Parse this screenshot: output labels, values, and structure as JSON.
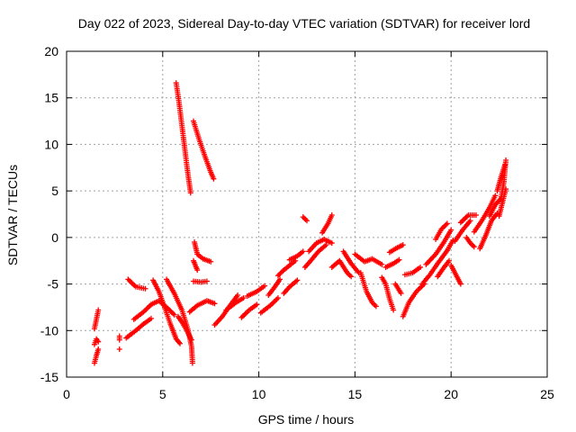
{
  "chart_data": {
    "type": "scatter",
    "title": "Day 022 of 2023, Sidereal Day-to-day VTEC variation (SDTVAR) for receiver lord",
    "xlabel": "GPS time / hours",
    "ylabel": "SDTVAR / TECUs",
    "xlim": [
      0,
      25
    ],
    "ylim": [
      -15,
      20
    ],
    "xticks": [
      0,
      5,
      10,
      15,
      20,
      25
    ],
    "yticks": [
      -15,
      -10,
      -5,
      0,
      5,
      10,
      15,
      20
    ],
    "xtick_labels": [
      "0",
      "5",
      "10",
      "15",
      "20",
      "25"
    ],
    "ytick_labels": [
      "-15",
      "-10",
      "-5",
      "0",
      "5",
      "10",
      "15",
      "20"
    ],
    "grid": true,
    "marker": "+",
    "color": "#ff0000",
    "tracks": [
      [
        [
          1.45,
          -13.5
        ],
        [
          1.55,
          -12.7
        ],
        [
          1.65,
          -12.0
        ]
      ],
      [
        [
          1.45,
          -11.5
        ],
        [
          1.55,
          -10.9
        ],
        [
          1.65,
          -11.2
        ]
      ],
      [
        [
          1.45,
          -9.8
        ],
        [
          1.55,
          -8.8
        ],
        [
          1.65,
          -7.8
        ]
      ],
      [
        [
          2.75,
          -12.0
        ]
      ],
      [
        [
          2.75,
          -10.6
        ],
        [
          2.75,
          -11.0
        ]
      ],
      [
        [
          3.1,
          -10.8
        ],
        [
          3.6,
          -10.0
        ],
        [
          4.0,
          -9.3
        ],
        [
          4.4,
          -8.7
        ]
      ],
      [
        [
          3.5,
          -8.8
        ],
        [
          4.0,
          -8.0
        ],
        [
          4.4,
          -7.2
        ]
      ],
      [
        [
          3.2,
          -4.5
        ],
        [
          3.6,
          -5.3
        ],
        [
          4.1,
          -5.5
        ]
      ],
      [
        [
          4.4,
          -7.2
        ],
        [
          4.8,
          -6.8
        ],
        [
          5.2,
          -7.5
        ],
        [
          5.6,
          -8.3
        ]
      ],
      [
        [
          4.5,
          -4.6
        ],
        [
          4.8,
          -5.8
        ],
        [
          5.1,
          -7.5
        ],
        [
          5.4,
          -9.3
        ],
        [
          5.7,
          -10.9
        ],
        [
          5.9,
          -11.4
        ]
      ],
      [
        [
          5.2,
          -4.5
        ],
        [
          5.6,
          -6.0
        ],
        [
          6.0,
          -7.8
        ],
        [
          6.3,
          -9.8
        ],
        [
          6.5,
          -11.7
        ],
        [
          6.55,
          -13.5
        ]
      ],
      [
        [
          5.8,
          -8.5
        ],
        [
          6.0,
          -9.1
        ],
        [
          6.2,
          -9.8
        ],
        [
          6.5,
          -11.0
        ]
      ],
      [
        [
          5.7,
          16.6
        ],
        [
          5.85,
          14.5
        ],
        [
          6.0,
          12.0
        ],
        [
          6.15,
          9.5
        ],
        [
          6.3,
          7.0
        ],
        [
          6.45,
          4.8
        ]
      ],
      [
        [
          6.6,
          12.5
        ],
        [
          6.9,
          10.5
        ],
        [
          7.2,
          8.7
        ],
        [
          7.5,
          7.0
        ],
        [
          7.65,
          6.3
        ]
      ],
      [
        [
          6.65,
          -0.5
        ],
        [
          6.8,
          -1.8
        ],
        [
          7.1,
          -2.3
        ],
        [
          7.5,
          -2.6
        ]
      ],
      [
        [
          6.6,
          -2.5
        ],
        [
          6.8,
          -3.5
        ]
      ],
      [
        [
          6.6,
          -4.7
        ],
        [
          7.0,
          -4.8
        ],
        [
          7.3,
          -4.7
        ]
      ],
      [
        [
          6.4,
          -8.0
        ],
        [
          6.8,
          -7.3
        ],
        [
          7.3,
          -6.8
        ],
        [
          7.7,
          -7.1
        ]
      ],
      [
        [
          7.7,
          -9.4
        ],
        [
          8.1,
          -8.5
        ],
        [
          8.5,
          -7.3
        ],
        [
          8.9,
          -6.2
        ]
      ],
      [
        [
          8.3,
          -7.8
        ],
        [
          8.8,
          -7.0
        ],
        [
          9.2,
          -6.5
        ]
      ],
      [
        [
          9.1,
          -8.6
        ],
        [
          9.5,
          -7.8
        ],
        [
          9.9,
          -7.2
        ]
      ],
      [
        [
          9.4,
          -6.3
        ],
        [
          9.9,
          -5.8
        ],
        [
          10.3,
          -5.2
        ]
      ],
      [
        [
          10.1,
          -8.1
        ],
        [
          10.6,
          -7.3
        ],
        [
          11.0,
          -6.5
        ]
      ],
      [
        [
          10.5,
          -6.2
        ],
        [
          10.8,
          -5.4
        ],
        [
          11.1,
          -4.5
        ]
      ],
      [
        [
          11.0,
          -4.1
        ],
        [
          11.3,
          -3.5
        ],
        [
          11.6,
          -3.0
        ],
        [
          11.9,
          -2.5
        ]
      ],
      [
        [
          11.3,
          -6.0
        ],
        [
          11.6,
          -5.3
        ],
        [
          12.0,
          -4.6
        ]
      ],
      [
        [
          11.6,
          -2.4
        ],
        [
          12.0,
          -2.0
        ],
        [
          12.3,
          -1.5
        ]
      ],
      [
        [
          12.3,
          2.2
        ],
        [
          12.5,
          1.8
        ]
      ],
      [
        [
          12.4,
          -3.2
        ],
        [
          12.7,
          -2.5
        ],
        [
          13.1,
          -1.5
        ],
        [
          13.5,
          -0.8
        ]
      ],
      [
        [
          12.6,
          -1.5
        ],
        [
          13.0,
          -0.6
        ],
        [
          13.4,
          -0.2
        ],
        [
          13.8,
          -0.6
        ]
      ],
      [
        [
          13.3,
          0.5
        ],
        [
          13.6,
          1.5
        ],
        [
          13.8,
          2.4
        ]
      ],
      [
        [
          13.8,
          -3.2
        ],
        [
          14.2,
          -2.5
        ],
        [
          14.6,
          -3.8
        ],
        [
          14.8,
          -4.2
        ]
      ],
      [
        [
          14.4,
          -1.5
        ],
        [
          14.8,
          -2.8
        ],
        [
          15.2,
          -3.8
        ]
      ],
      [
        [
          15.0,
          -1.8
        ],
        [
          15.5,
          -2.6
        ],
        [
          15.9,
          -2.3
        ],
        [
          16.4,
          -2.9
        ]
      ],
      [
        [
          15.3,
          -3.8
        ],
        [
          15.6,
          -5.8
        ],
        [
          15.9,
          -7.0
        ],
        [
          16.1,
          -7.4
        ]
      ],
      [
        [
          16.4,
          -4.3
        ],
        [
          16.6,
          -5.0
        ],
        [
          16.8,
          -6.6
        ],
        [
          17.0,
          -7.8
        ]
      ],
      [
        [
          16.6,
          -3.2
        ],
        [
          17.0,
          -2.8
        ],
        [
          17.3,
          -2.4
        ]
      ],
      [
        [
          16.8,
          -1.6
        ],
        [
          17.2,
          -1.1
        ],
        [
          17.5,
          -0.8
        ]
      ],
      [
        [
          17.1,
          -5.0
        ],
        [
          17.4,
          -6.0
        ]
      ],
      [
        [
          17.5,
          -8.5
        ],
        [
          17.8,
          -7.0
        ],
        [
          18.2,
          -5.8
        ],
        [
          18.6,
          -5.0
        ]
      ],
      [
        [
          17.6,
          -4.0
        ],
        [
          18.0,
          -3.8
        ],
        [
          18.4,
          -3.2
        ]
      ],
      [
        [
          18.5,
          -5.0
        ],
        [
          18.9,
          -4.0
        ],
        [
          19.3,
          -2.8
        ],
        [
          19.8,
          -1.4
        ],
        [
          20.1,
          -0.3
        ]
      ],
      [
        [
          19.3,
          -4.2
        ],
        [
          19.6,
          -3.3
        ],
        [
          19.9,
          -2.5
        ]
      ],
      [
        [
          18.7,
          -2.9
        ],
        [
          19.2,
          -1.8
        ],
        [
          19.6,
          -0.6
        ],
        [
          20.0,
          0.8
        ]
      ],
      [
        [
          19.2,
          -0.2
        ],
        [
          19.5,
          0.9
        ],
        [
          19.8,
          1.5
        ]
      ],
      [
        [
          20.0,
          -3.0
        ],
        [
          20.3,
          -4.2
        ],
        [
          20.5,
          -5.0
        ]
      ],
      [
        [
          20.2,
          -0.4
        ],
        [
          20.6,
          0.8
        ],
        [
          21.0,
          1.8
        ]
      ],
      [
        [
          20.5,
          1.6
        ],
        [
          20.9,
          2.4
        ],
        [
          21.3,
          2.4
        ]
      ],
      [
        [
          20.8,
          0.0
        ],
        [
          21.0,
          -0.6
        ],
        [
          21.2,
          -1.0
        ]
      ],
      [
        [
          21.2,
          0.6
        ],
        [
          21.6,
          1.8
        ],
        [
          22.0,
          3.2
        ],
        [
          22.3,
          4.5
        ]
      ],
      [
        [
          21.5,
          -1.2
        ],
        [
          21.8,
          0.2
        ],
        [
          22.1,
          1.8
        ],
        [
          22.4,
          2.6
        ]
      ],
      [
        [
          22.0,
          2.3
        ],
        [
          22.3,
          3.5
        ],
        [
          22.6,
          4.2
        ]
      ],
      [
        [
          22.4,
          5.0
        ],
        [
          22.6,
          6.5
        ],
        [
          22.8,
          7.8
        ]
      ],
      [
        [
          22.5,
          2.3
        ],
        [
          22.7,
          4.0
        ],
        [
          22.85,
          5.2
        ]
      ],
      [
        [
          22.6,
          4.2
        ],
        [
          22.75,
          6.0
        ],
        [
          22.85,
          8.3
        ]
      ]
    ]
  }
}
